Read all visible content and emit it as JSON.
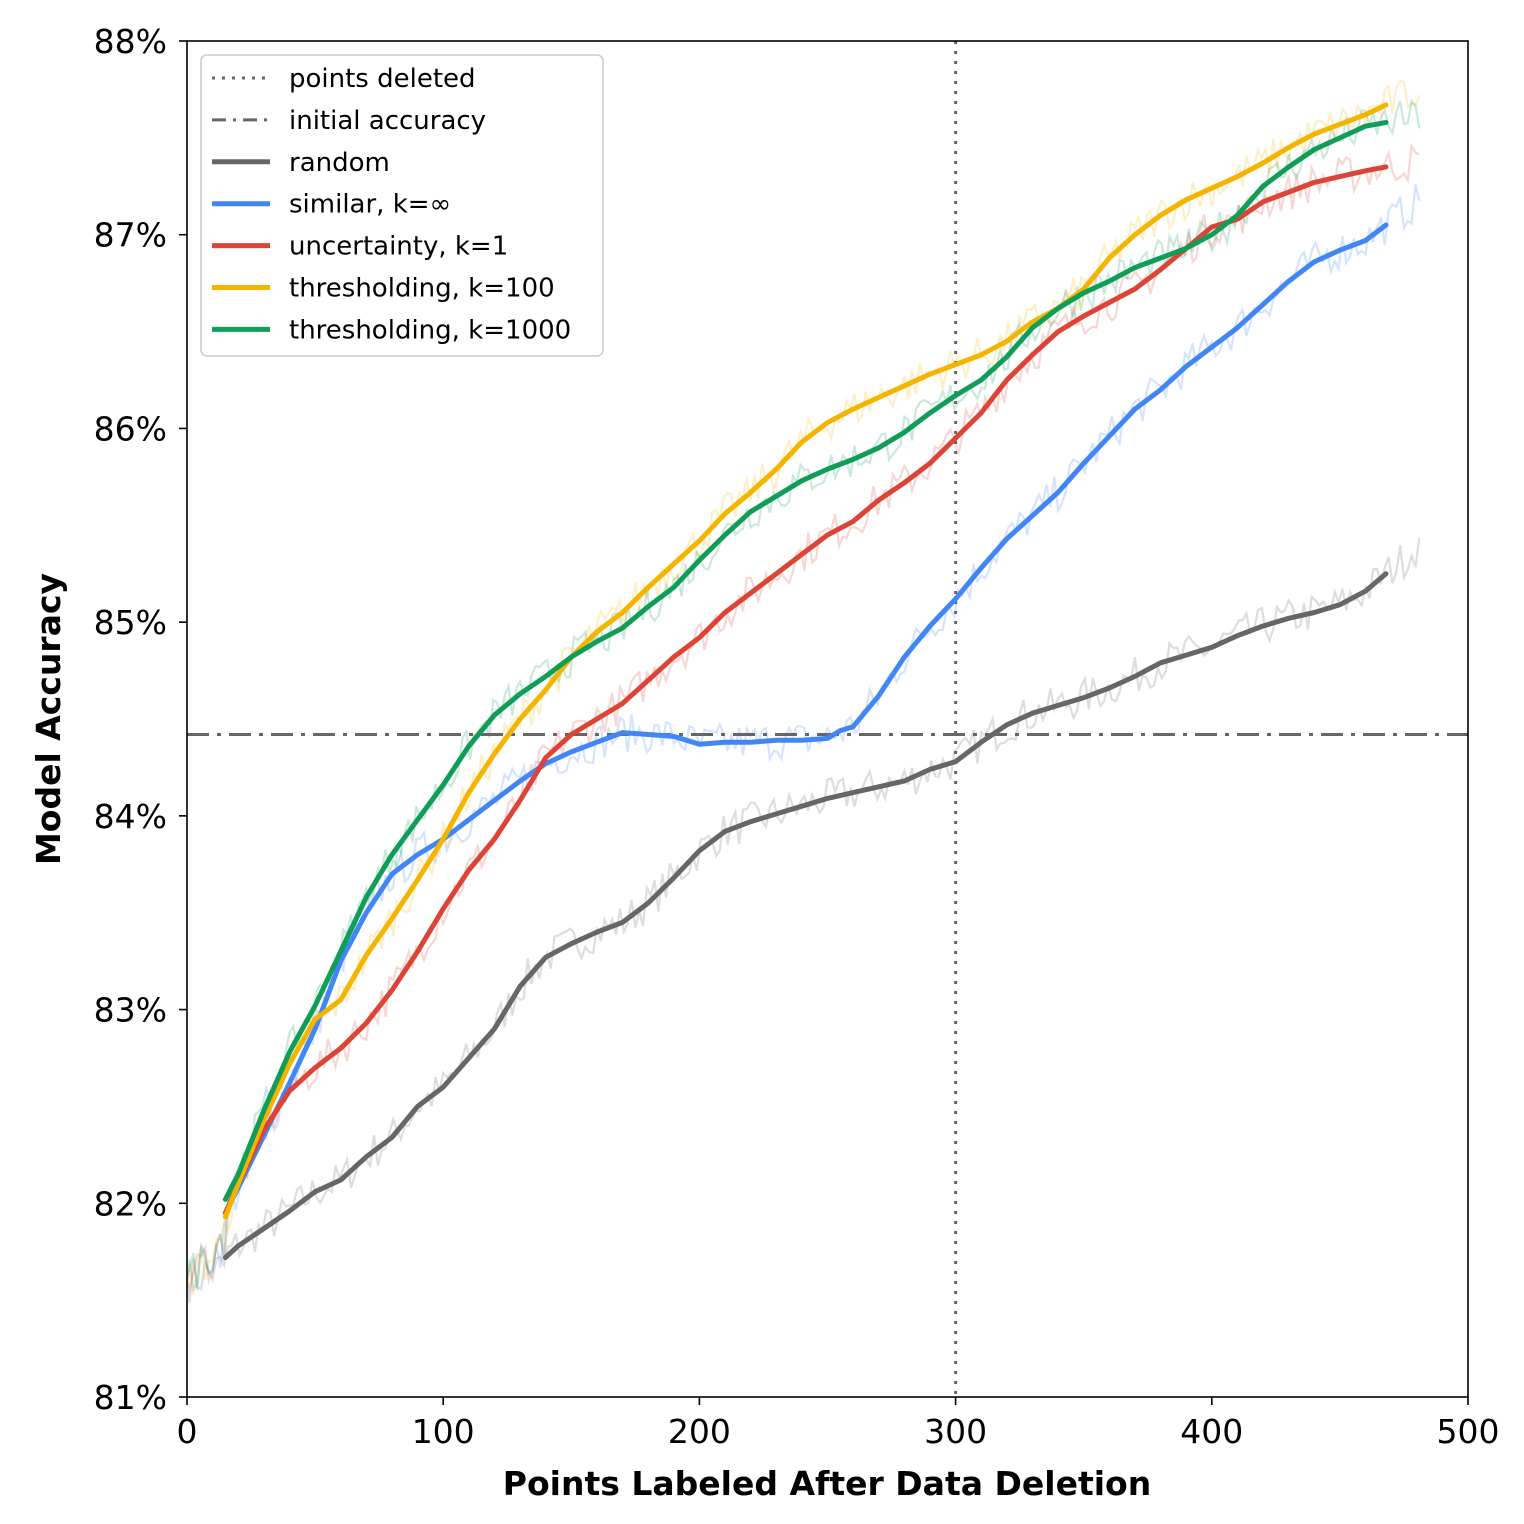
{
  "chart_data": {
    "type": "line",
    "xlabel": "Points Labeled After Data Deletion",
    "ylabel": "Model Accuracy",
    "xlim": [
      0,
      500
    ],
    "ylim": [
      81,
      88
    ],
    "x_ticks": [
      0,
      100,
      200,
      300,
      400,
      500
    ],
    "x_tick_labels": [
      "0",
      "100",
      "200",
      "300",
      "400",
      "500"
    ],
    "y_ticks": [
      81,
      82,
      83,
      84,
      85,
      86,
      87,
      88
    ],
    "y_tick_labels": [
      "81%",
      "82%",
      "83%",
      "84%",
      "85%",
      "86%",
      "87%",
      "88%"
    ],
    "grid": false,
    "legend_position": "top-left",
    "reference_lines": [
      {
        "name": "points deleted",
        "orientation": "vertical",
        "value": 300,
        "style": "dotted",
        "color": "#666666"
      },
      {
        "name": "initial accuracy",
        "orientation": "horizontal",
        "value": 84.42,
        "style": "dash-dot",
        "color": "#666666"
      }
    ],
    "series": [
      {
        "name": "random",
        "color": "#666666",
        "x": [
          15,
          20,
          30,
          40,
          50,
          60,
          70,
          80,
          90,
          100,
          110,
          120,
          130,
          140,
          150,
          160,
          170,
          180,
          190,
          200,
          210,
          220,
          230,
          240,
          250,
          260,
          270,
          280,
          290,
          300,
          310,
          320,
          330,
          340,
          350,
          360,
          370,
          380,
          390,
          400,
          410,
          420,
          430,
          440,
          450,
          460,
          468
        ],
        "y": [
          81.72,
          81.78,
          81.87,
          81.96,
          82.06,
          82.12,
          82.24,
          82.34,
          82.5,
          82.6,
          82.75,
          82.9,
          83.12,
          83.27,
          83.34,
          83.4,
          83.45,
          83.55,
          83.68,
          83.82,
          83.92,
          83.97,
          84.01,
          84.05,
          84.09,
          84.12,
          84.15,
          84.18,
          84.24,
          84.28,
          84.38,
          84.47,
          84.53,
          84.57,
          84.61,
          84.66,
          84.72,
          84.79,
          84.83,
          84.87,
          84.93,
          84.98,
          85.02,
          85.05,
          85.09,
          85.16,
          85.25
        ]
      },
      {
        "name": "similar, k=∞",
        "color": "#4285f4",
        "x": [
          15,
          20,
          30,
          40,
          50,
          60,
          70,
          80,
          90,
          100,
          110,
          120,
          130,
          140,
          150,
          160,
          170,
          180,
          190,
          200,
          210,
          220,
          230,
          240,
          250,
          255,
          260,
          270,
          280,
          290,
          300,
          310,
          320,
          330,
          340,
          350,
          360,
          370,
          380,
          390,
          400,
          410,
          420,
          430,
          440,
          450,
          460,
          468
        ],
        "y": [
          81.95,
          82.08,
          82.35,
          82.62,
          82.9,
          83.25,
          83.5,
          83.7,
          83.8,
          83.88,
          83.98,
          84.08,
          84.18,
          84.27,
          84.33,
          84.38,
          84.43,
          84.42,
          84.41,
          84.37,
          84.38,
          84.38,
          84.39,
          84.39,
          84.4,
          84.44,
          84.46,
          84.62,
          84.82,
          84.98,
          85.12,
          85.28,
          85.43,
          85.55,
          85.67,
          85.82,
          85.96,
          86.1,
          86.2,
          86.32,
          86.42,
          86.52,
          86.64,
          86.76,
          86.86,
          86.92,
          86.97,
          87.05
        ]
      },
      {
        "name": "uncertainty, k=1",
        "color": "#db4437",
        "x": [
          15,
          20,
          30,
          40,
          50,
          60,
          70,
          80,
          90,
          100,
          110,
          120,
          130,
          140,
          150,
          160,
          170,
          180,
          190,
          200,
          210,
          220,
          230,
          240,
          250,
          260,
          270,
          280,
          290,
          300,
          310,
          320,
          330,
          340,
          350,
          360,
          370,
          380,
          390,
          400,
          410,
          420,
          430,
          440,
          450,
          460,
          468
        ],
        "y": [
          81.95,
          82.1,
          82.38,
          82.58,
          82.7,
          82.8,
          82.93,
          83.1,
          83.3,
          83.52,
          83.72,
          83.88,
          84.08,
          84.3,
          84.42,
          84.5,
          84.58,
          84.7,
          84.82,
          84.92,
          85.05,
          85.15,
          85.25,
          85.35,
          85.45,
          85.52,
          85.63,
          85.72,
          85.82,
          85.95,
          86.08,
          86.25,
          86.38,
          86.5,
          86.58,
          86.65,
          86.72,
          86.82,
          86.93,
          87.04,
          87.08,
          87.17,
          87.22,
          87.27,
          87.3,
          87.33,
          87.35
        ]
      },
      {
        "name": "thresholding, k=100",
        "color": "#f4b400",
        "x": [
          15,
          20,
          30,
          40,
          50,
          60,
          70,
          80,
          90,
          100,
          110,
          120,
          130,
          140,
          150,
          160,
          170,
          180,
          190,
          200,
          210,
          220,
          230,
          240,
          250,
          260,
          270,
          280,
          290,
          300,
          310,
          320,
          330,
          340,
          350,
          360,
          370,
          380,
          390,
          400,
          410,
          420,
          430,
          440,
          450,
          460,
          468
        ],
        "y": [
          81.93,
          82.1,
          82.43,
          82.72,
          82.95,
          83.05,
          83.28,
          83.47,
          83.67,
          83.88,
          84.12,
          84.32,
          84.5,
          84.65,
          84.82,
          84.95,
          85.05,
          85.18,
          85.3,
          85.42,
          85.56,
          85.67,
          85.79,
          85.93,
          86.03,
          86.1,
          86.16,
          86.22,
          86.28,
          86.33,
          86.38,
          86.45,
          86.55,
          86.62,
          86.72,
          86.88,
          87.0,
          87.1,
          87.18,
          87.24,
          87.3,
          87.37,
          87.45,
          87.52,
          87.57,
          87.62,
          87.67
        ]
      },
      {
        "name": "thresholding, k=1000",
        "color": "#0f9d58",
        "x": [
          15,
          20,
          30,
          40,
          50,
          60,
          70,
          80,
          90,
          100,
          110,
          120,
          130,
          140,
          150,
          160,
          170,
          180,
          190,
          200,
          210,
          220,
          230,
          240,
          250,
          260,
          270,
          280,
          290,
          300,
          310,
          320,
          330,
          340,
          350,
          360,
          370,
          380,
          390,
          400,
          410,
          420,
          430,
          440,
          450,
          460,
          468
        ],
        "y": [
          82.02,
          82.15,
          82.48,
          82.78,
          83.02,
          83.3,
          83.58,
          83.8,
          83.98,
          84.16,
          84.36,
          84.52,
          84.63,
          84.72,
          84.82,
          84.9,
          84.97,
          85.08,
          85.18,
          85.32,
          85.45,
          85.57,
          85.65,
          85.73,
          85.79,
          85.84,
          85.9,
          85.98,
          86.08,
          86.17,
          86.25,
          86.37,
          86.52,
          86.62,
          86.7,
          86.76,
          86.83,
          86.88,
          86.93,
          87.0,
          87.1,
          87.25,
          87.35,
          87.44,
          87.5,
          87.56,
          87.58
        ]
      }
    ]
  }
}
